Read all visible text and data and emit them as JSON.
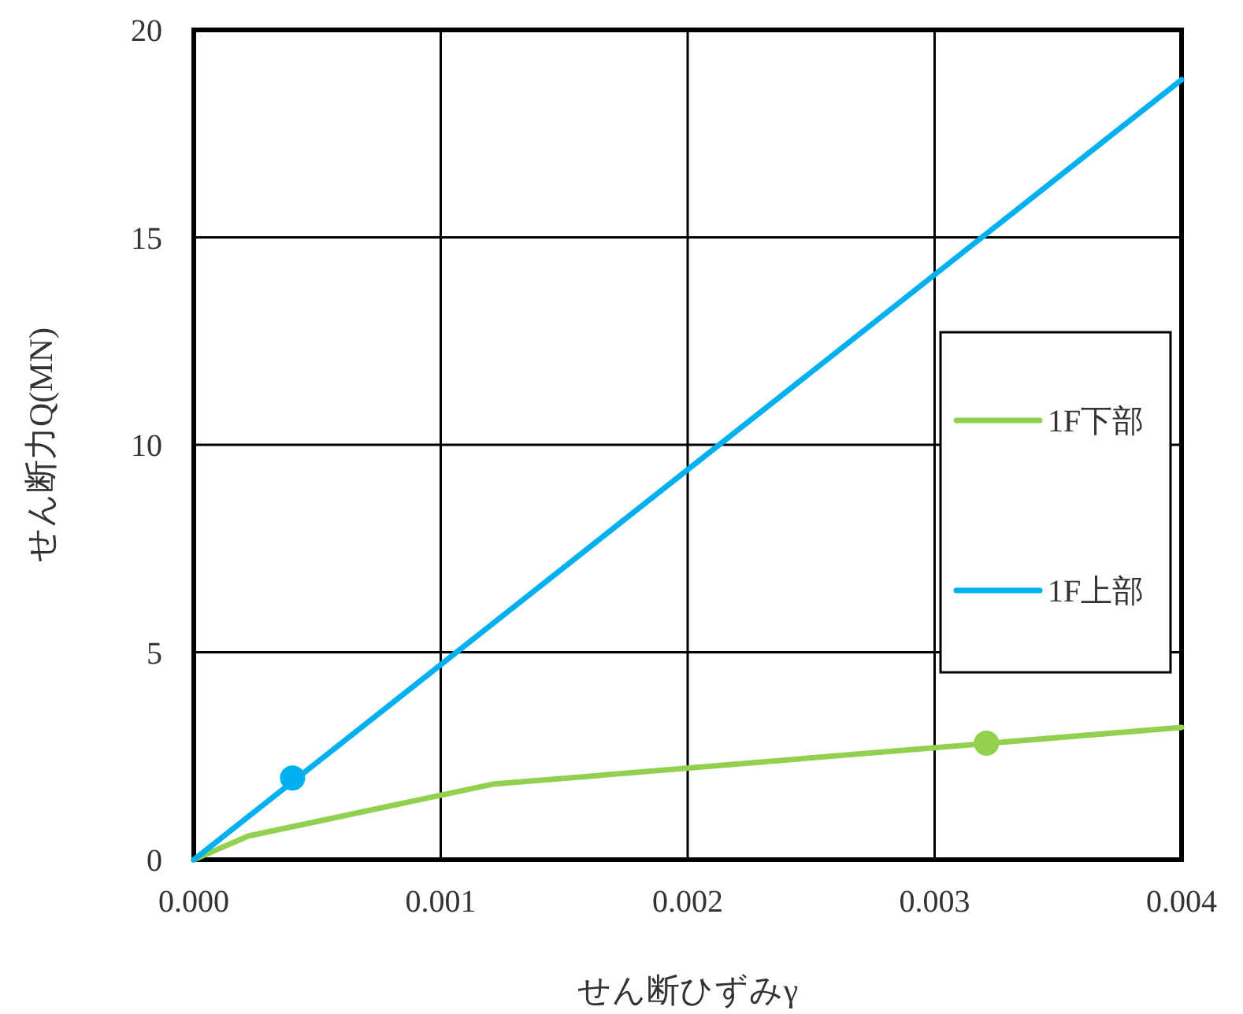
{
  "chart_data": {
    "type": "line",
    "xlabel": "せん断ひずみγ",
    "ylabel": "せん断力Q(MN)",
    "xlim": [
      0,
      0.004
    ],
    "ylim": [
      0,
      20
    ],
    "xticks": [
      {
        "value": 0,
        "label": "0.000"
      },
      {
        "value": 0.001,
        "label": "0.001"
      },
      {
        "value": 0.002,
        "label": "0.002"
      },
      {
        "value": 0.003,
        "label": "0.003"
      },
      {
        "value": 0.004,
        "label": "0.004"
      }
    ],
    "yticks": [
      0,
      5,
      10,
      15,
      20
    ],
    "grid": true,
    "legend": "right",
    "series": [
      {
        "name": "1F下部",
        "color": "#92d050",
        "x": [
          0,
          0.00022,
          0.00121,
          0.004
        ],
        "values": [
          0,
          0.57,
          1.82,
          3.19
        ]
      },
      {
        "name": "1F上部",
        "color": "#00b0f0",
        "x": [
          0,
          0.004
        ],
        "values": [
          0,
          18.8
        ]
      },
      {
        "type": "scatter",
        "color": "#92d050",
        "x": [
          0.00321
        ],
        "values": [
          2.81
        ]
      },
      {
        "type": "scatter",
        "color": "#00b0f0",
        "x": [
          0.0004
        ],
        "values": [
          1.97
        ]
      }
    ]
  }
}
